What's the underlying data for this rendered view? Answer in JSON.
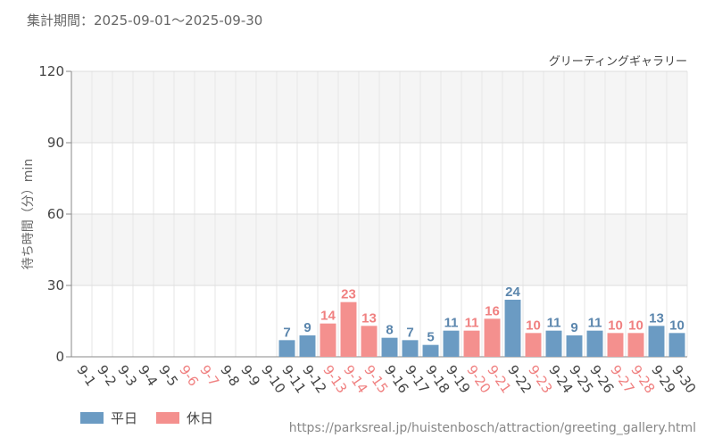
{
  "period_text": "集計期間：2025-09-01～2025-09-30",
  "footer_url": "https://parksreal.jp/huistenbosch/attraction/greeting_gallery.html",
  "colors": {
    "weekday": "#6b9bc3",
    "holiday": "#f4908e",
    "weekday_label": "#5b86ad",
    "holiday_label": "#f08080",
    "tick_label": "#444444",
    "grid_band": "#f5f5f5"
  },
  "chart_data": {
    "type": "bar",
    "title": "グリーティングギャラリー",
    "ylabel": "待ち時間（分）min",
    "ylim": [
      0,
      120
    ],
    "yticks": [
      0,
      30,
      60,
      90,
      120
    ],
    "grid": true,
    "legend_position": "bottom-left",
    "categories": [
      "9-1",
      "9-2",
      "9-3",
      "9-4",
      "9-5",
      "9-6",
      "9-7",
      "9-8",
      "9-9",
      "9-10",
      "9-11",
      "9-12",
      "9-13",
      "9-14",
      "9-15",
      "9-16",
      "9-17",
      "9-18",
      "9-19",
      "9-20",
      "9-21",
      "9-22",
      "9-23",
      "9-24",
      "9-25",
      "9-26",
      "9-27",
      "9-28",
      "9-29",
      "9-30"
    ],
    "values": [
      null,
      null,
      null,
      null,
      null,
      null,
      null,
      null,
      null,
      null,
      7,
      9,
      14,
      23,
      13,
      8,
      7,
      5,
      11,
      11,
      16,
      24,
      10,
      11,
      9,
      11,
      10,
      10,
      13,
      10
    ],
    "day_type": [
      "weekday",
      "weekday",
      "weekday",
      "weekday",
      "weekday",
      "holiday",
      "holiday",
      "weekday",
      "weekday",
      "weekday",
      "weekday",
      "weekday",
      "holiday",
      "holiday",
      "holiday",
      "weekday",
      "weekday",
      "weekday",
      "weekday",
      "holiday",
      "holiday",
      "weekday",
      "holiday",
      "weekday",
      "weekday",
      "weekday",
      "holiday",
      "holiday",
      "weekday",
      "weekday"
    ],
    "series": [
      {
        "name": "平日",
        "type": "weekday"
      },
      {
        "name": "休日",
        "type": "holiday"
      }
    ]
  }
}
